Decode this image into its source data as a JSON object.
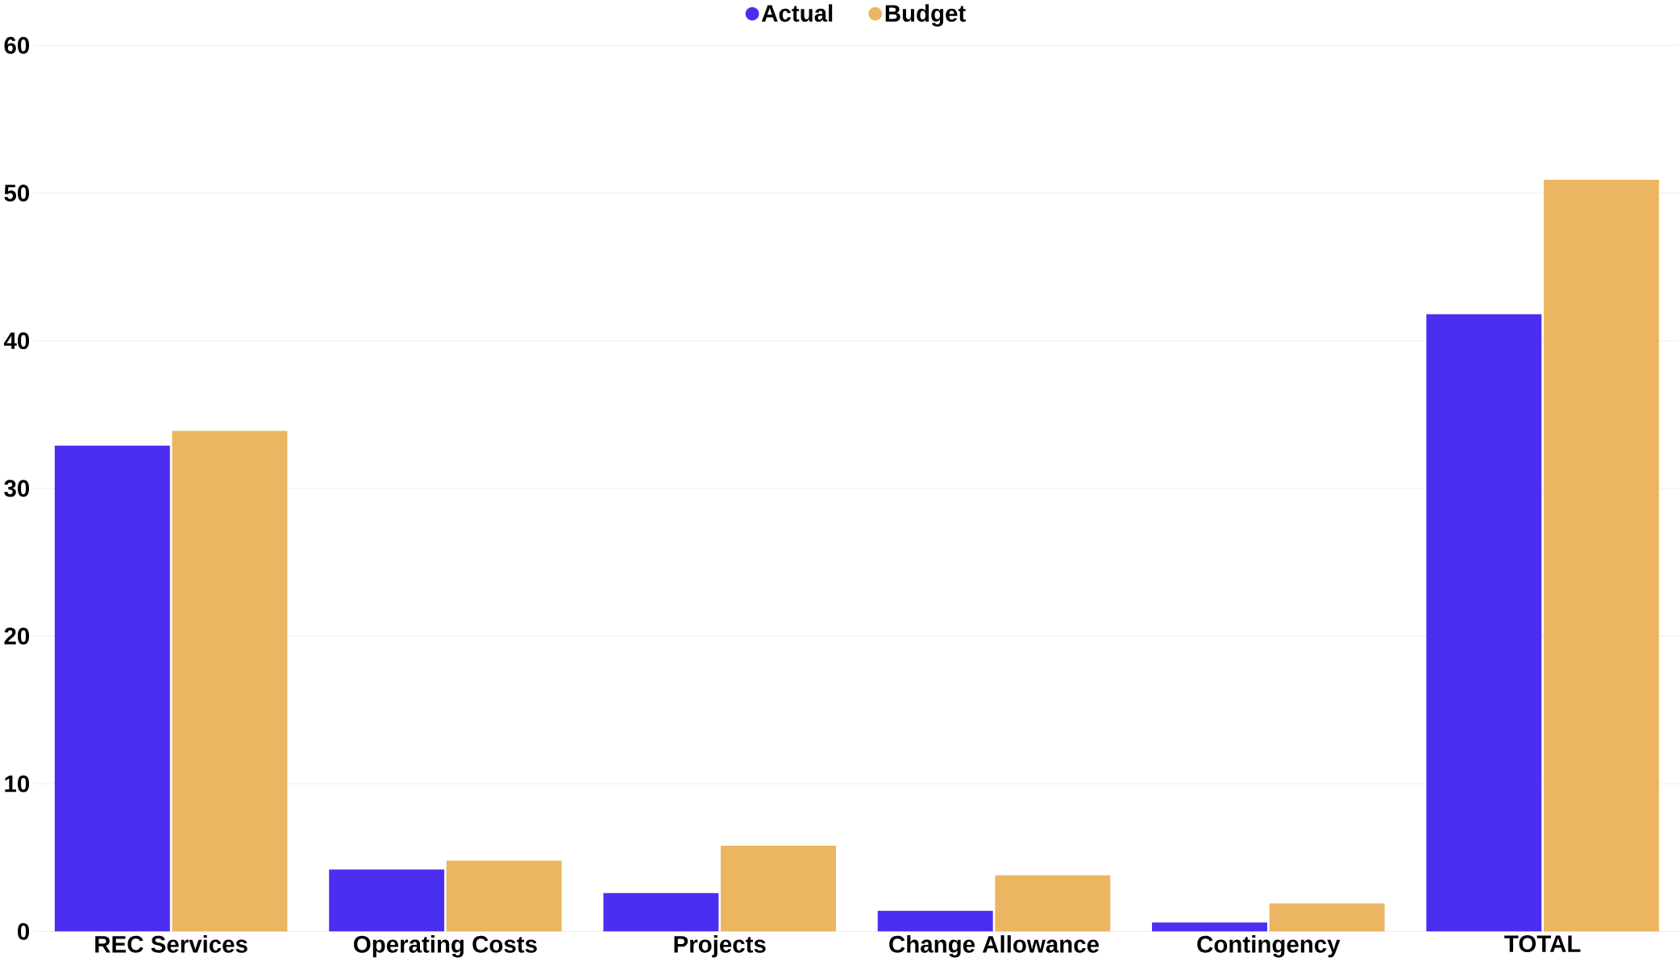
{
  "chart_data": {
    "type": "bar",
    "categories": [
      "REC Services",
      "Operating Costs",
      "Projects",
      "Change Allowance",
      "Contingency",
      "TOTAL"
    ],
    "series": [
      {
        "name": "Actual",
        "color": "#4b2ff0",
        "values": [
          32.9,
          4.2,
          2.6,
          1.4,
          0.6,
          41.8
        ]
      },
      {
        "name": "Budget",
        "color": "#ebb561",
        "values": [
          33.9,
          4.8,
          5.8,
          3.8,
          1.9,
          50.9
        ]
      }
    ],
    "ylim": [
      0,
      60
    ],
    "yticks": [
      0,
      10,
      20,
      30,
      40,
      50,
      60
    ],
    "grid": "y",
    "legend": "top"
  }
}
